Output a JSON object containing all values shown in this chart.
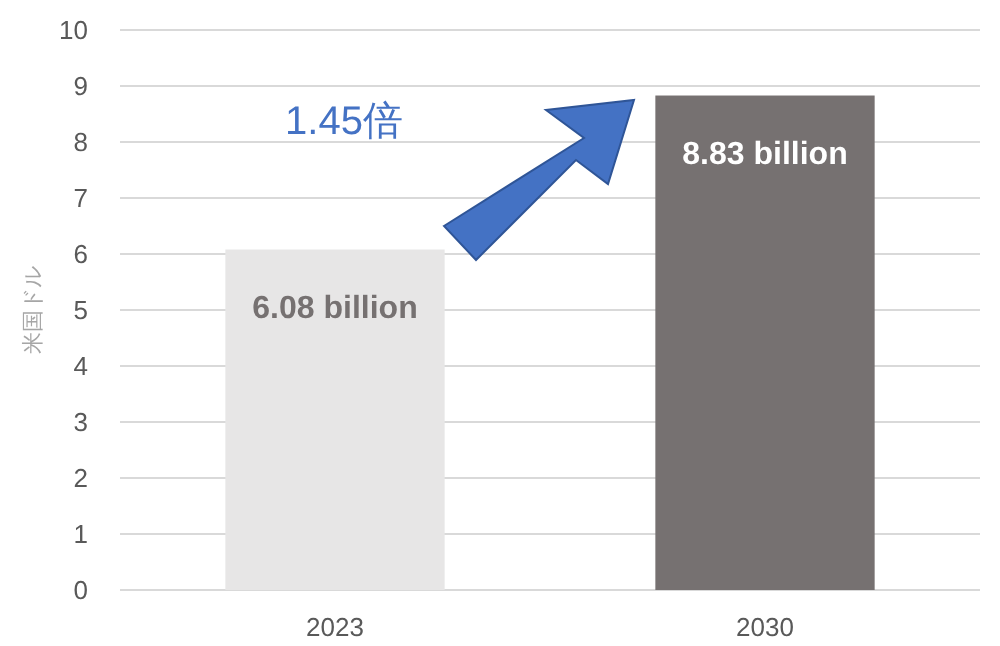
{
  "chart_data": {
    "type": "bar",
    "categories": [
      "2023",
      "2030"
    ],
    "values": [
      6.08,
      8.83
    ],
    "colors": [
      "#e7e6e6",
      "#767171"
    ],
    "value_labels": [
      "6.08 billion",
      "8.83 billion"
    ],
    "ylabel": "米国ドル",
    "annotations": [
      "1.45倍"
    ],
    "ylim": [
      0,
      10
    ],
    "yticks": [
      0,
      1,
      2,
      3,
      4,
      5,
      6,
      7,
      8,
      9,
      10
    ],
    "grid": "y"
  }
}
